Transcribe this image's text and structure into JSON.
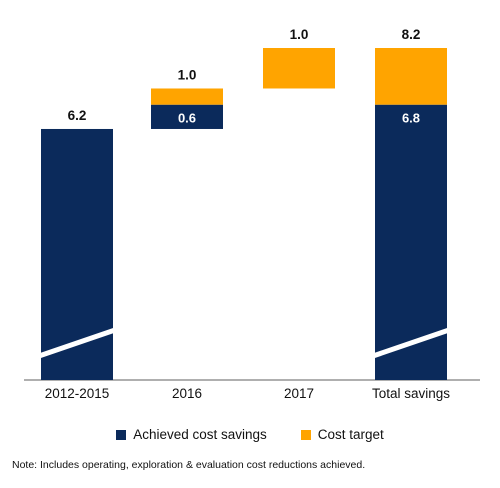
{
  "colors": {
    "achieved": "#0b2a5b",
    "target": "#ffa400",
    "axis": "#7f7f7f",
    "label_text": "#111111",
    "inbar_text": "#ffffff"
  },
  "legend": {
    "achieved_label": "Achieved cost savings",
    "target_label": "Cost target"
  },
  "note": "Note: Includes operating, exploration & evaluation cost reductions achieved.",
  "chart_data": {
    "type": "bar",
    "subtype": "waterfall",
    "categories": [
      "2012-2015",
      "2016",
      "2017",
      "Total savings"
    ],
    "series": [
      {
        "name": "Achieved cost savings",
        "values": [
          6.2,
          0.6,
          0,
          6.8
        ]
      },
      {
        "name": "Cost target",
        "values": [
          0,
          0.4,
          1.0,
          1.4
        ]
      }
    ],
    "total_labels": [
      "6.2",
      "1.0",
      "1.0",
      "8.2"
    ],
    "inner_labels": [
      "",
      "0.6",
      "",
      "6.8"
    ],
    "axis_break_on": [
      "2012-2015",
      "Total savings"
    ],
    "ylim": [
      0,
      8.2
    ],
    "grid": false,
    "legend_position": "bottom"
  }
}
